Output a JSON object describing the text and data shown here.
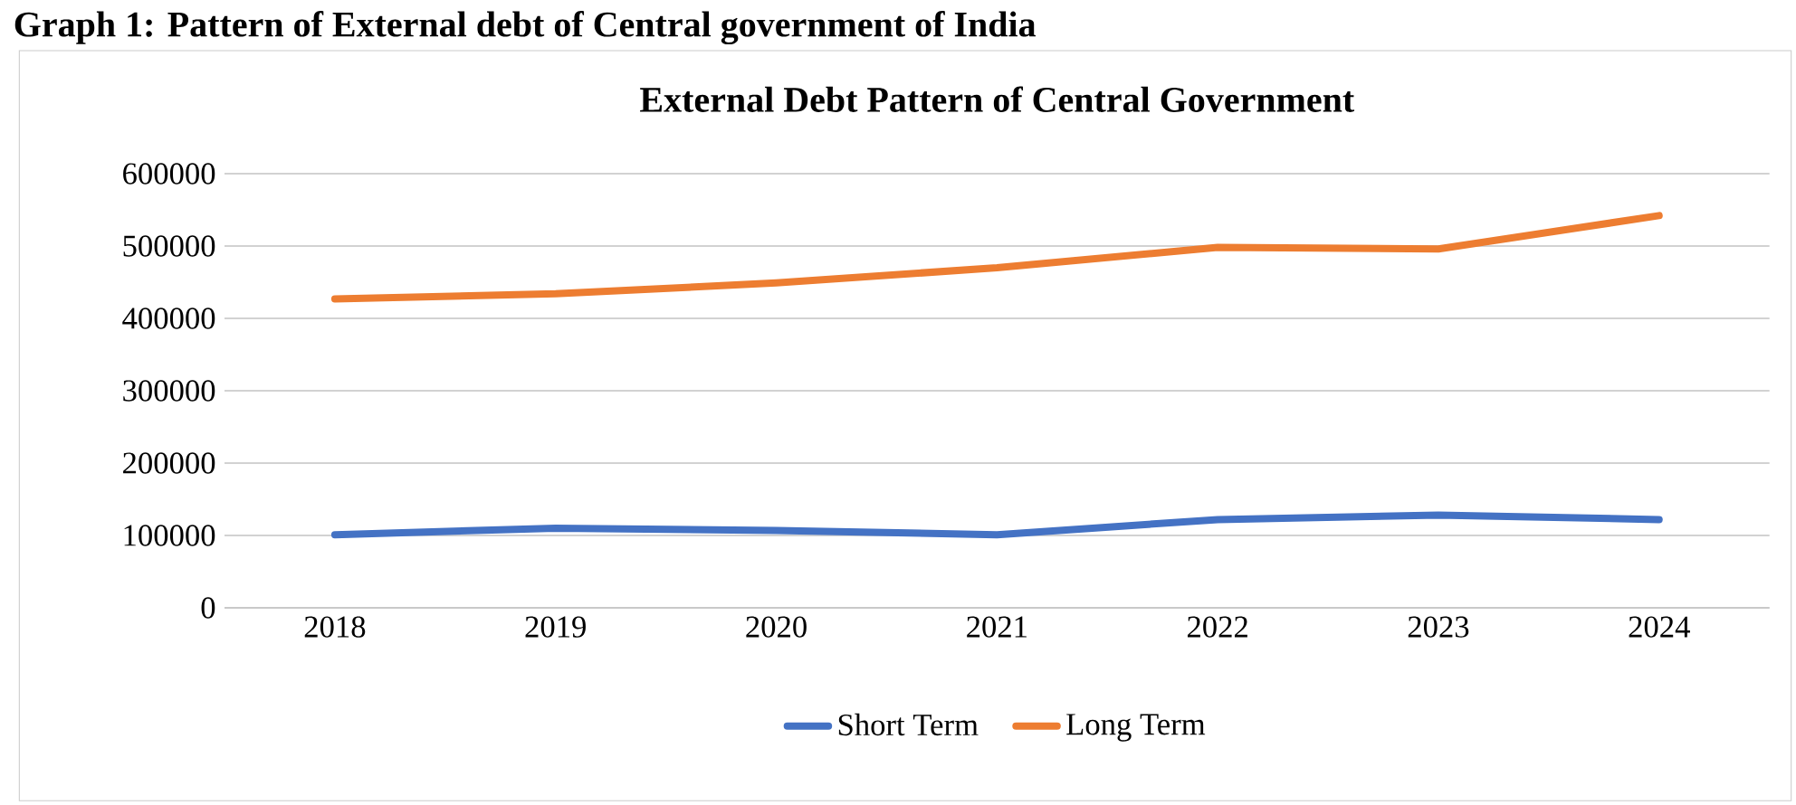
{
  "chart_data": {
    "type": "line",
    "title": "External Debt Pattern of Central Government",
    "annotations": [
      "Graph 1: Pattern of External debt of Central government of India"
    ],
    "categories": [
      "2018",
      "2019",
      "2020",
      "2021",
      "2022",
      "2023",
      "2024"
    ],
    "series": [
      {
        "name": "Short Term",
        "color": "#4472c4",
        "values": [
          101000,
          110000,
          107000,
          101000,
          122000,
          128000,
          122000
        ]
      },
      {
        "name": "Long Term",
        "color": "#ed7d31",
        "values": [
          427000,
          434000,
          449000,
          470000,
          498000,
          496000,
          542000
        ]
      }
    ],
    "ylim": [
      0,
      600000
    ],
    "yticks": [
      0,
      100000,
      200000,
      300000,
      400000,
      500000,
      600000
    ],
    "grid": "y",
    "legend": "bottom",
    "marker": "none",
    "line_style": "solid"
  }
}
